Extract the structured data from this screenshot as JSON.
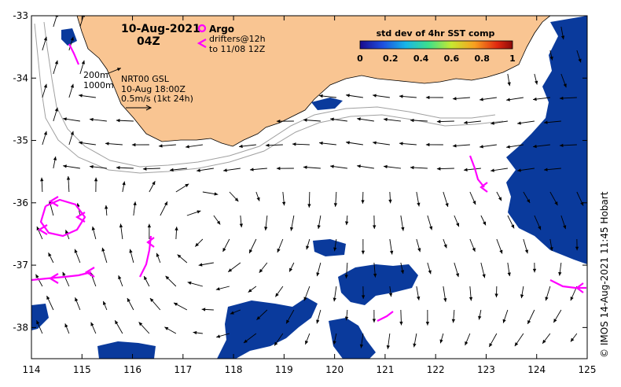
{
  "map": {
    "title_date": "10-Aug-2021",
    "title_time": "04Z",
    "argo_label": "Argo",
    "drifters_label": "drifters@12h",
    "drifters_window": "to 11/08 12Z",
    "isobath_200": "200m",
    "isobath_1000": "1000m",
    "product": "NRT00 GSL",
    "product_time": "10-Aug 18:00Z",
    "scale_text": "0.5m/s (1kt 24h)",
    "credit": "© IMOS 14-Aug-2021 11:45 Hobart",
    "colorbar": {
      "title": "std dev of 4hr SST comp",
      "ticks": [
        "0",
        "0.2",
        "0.4",
        "0.6",
        "0.8",
        "1"
      ]
    },
    "x_ticks": [
      "114",
      "115",
      "116",
      "117",
      "118",
      "119",
      "120",
      "121",
      "122",
      "123",
      "124",
      "125"
    ],
    "y_ticks": [
      "-33",
      "-34",
      "-35",
      "-36",
      "-37",
      "-38"
    ],
    "colors": {
      "land": "#f9c592",
      "sst_patch": "#0a3a9c",
      "drifter": "#ff00ff",
      "arrow": "#000000",
      "isobath": "#a0a0a0"
    }
  }
}
